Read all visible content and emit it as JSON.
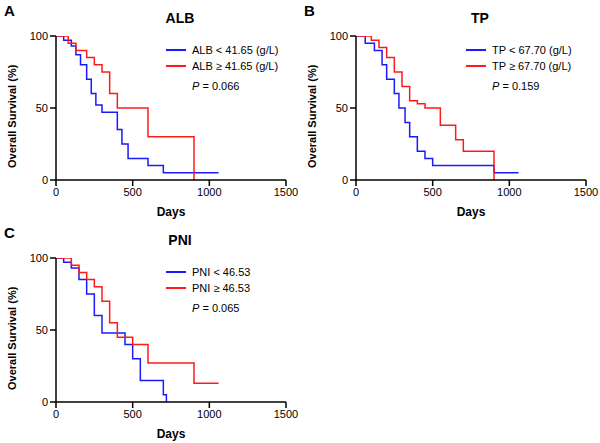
{
  "chart_data": [
    {
      "type": "line",
      "panel": "A",
      "title": "ALB",
      "x_label": "Days",
      "y_label": "Overall Survival (%)",
      "xlim": [
        0,
        1500
      ],
      "xticks": [
        0,
        500,
        1000,
        1500
      ],
      "ylim": [
        0,
        100
      ],
      "yticks": [
        0,
        50,
        100
      ],
      "annotation": "P = 0.066",
      "line_style": "step",
      "series": [
        {
          "name": "ALB < 41.65 (g/L)",
          "color": "#1a1aff",
          "x": [
            0,
            50,
            100,
            130,
            160,
            200,
            230,
            260,
            300,
            330,
            400,
            430,
            470,
            530,
            600,
            700,
            1060
          ],
          "values": [
            100,
            97,
            93,
            87,
            80,
            70,
            60,
            52,
            47,
            47,
            35,
            25,
            15,
            15,
            10,
            5,
            5
          ]
        },
        {
          "name": "ALB ≥ 41.65 (g/L)",
          "color": "#ff1a1a",
          "x": [
            0,
            80,
            130,
            200,
            250,
            300,
            350,
            400,
            500,
            600,
            700,
            900
          ],
          "values": [
            100,
            95,
            90,
            85,
            80,
            75,
            60,
            50,
            50,
            30,
            30,
            0
          ]
        }
      ]
    },
    {
      "type": "line",
      "panel": "B",
      "title": "TP",
      "x_label": "Days",
      "y_label": "Overall Survival (%)",
      "xlim": [
        0,
        1500
      ],
      "xticks": [
        0,
        500,
        1000,
        1500
      ],
      "ylim": [
        0,
        100
      ],
      "yticks": [
        0,
        50,
        100
      ],
      "annotation": "P = 0.159",
      "line_style": "step",
      "series": [
        {
          "name": "TP < 67.70 (g/L)",
          "color": "#1a1aff",
          "x": [
            0,
            60,
            120,
            170,
            200,
            250,
            280,
            320,
            350,
            400,
            450,
            500,
            900,
            1060
          ],
          "values": [
            100,
            95,
            90,
            80,
            70,
            60,
            50,
            40,
            30,
            20,
            15,
            10,
            5,
            5
          ]
        },
        {
          "name": "TP ≥ 67.70 (g/L)",
          "color": "#ff1a1a",
          "x": [
            0,
            100,
            150,
            200,
            250,
            300,
            350,
            400,
            450,
            550,
            650,
            700,
            900
          ],
          "values": [
            100,
            97,
            92,
            85,
            75,
            65,
            55,
            53,
            50,
            38,
            28,
            20,
            0
          ]
        }
      ]
    },
    {
      "type": "line",
      "panel": "C",
      "title": "PNI",
      "x_label": "Days",
      "y_label": "Overall Survival (%)",
      "xlim": [
        0,
        1500
      ],
      "xticks": [
        0,
        500,
        1000,
        1500
      ],
      "ylim": [
        0,
        100
      ],
      "yticks": [
        0,
        50,
        100
      ],
      "annotation": "P = 0.065",
      "line_style": "step",
      "series": [
        {
          "name": "PNI < 46.53",
          "color": "#1a1aff",
          "x": [
            0,
            50,
            100,
            150,
            200,
            250,
            300,
            350,
            450,
            500,
            550,
            600,
            700,
            720
          ],
          "values": [
            100,
            97,
            93,
            85,
            75,
            60,
            48,
            48,
            40,
            30,
            15,
            15,
            5,
            0
          ]
        },
        {
          "name": "PNI ≥ 46.53",
          "color": "#ff1a1a",
          "x": [
            0,
            100,
            150,
            200,
            250,
            300,
            350,
            400,
            500,
            600,
            700,
            900,
            1060
          ],
          "values": [
            100,
            95,
            90,
            85,
            80,
            70,
            55,
            45,
            40,
            27,
            27,
            13,
            13
          ]
        }
      ]
    }
  ]
}
